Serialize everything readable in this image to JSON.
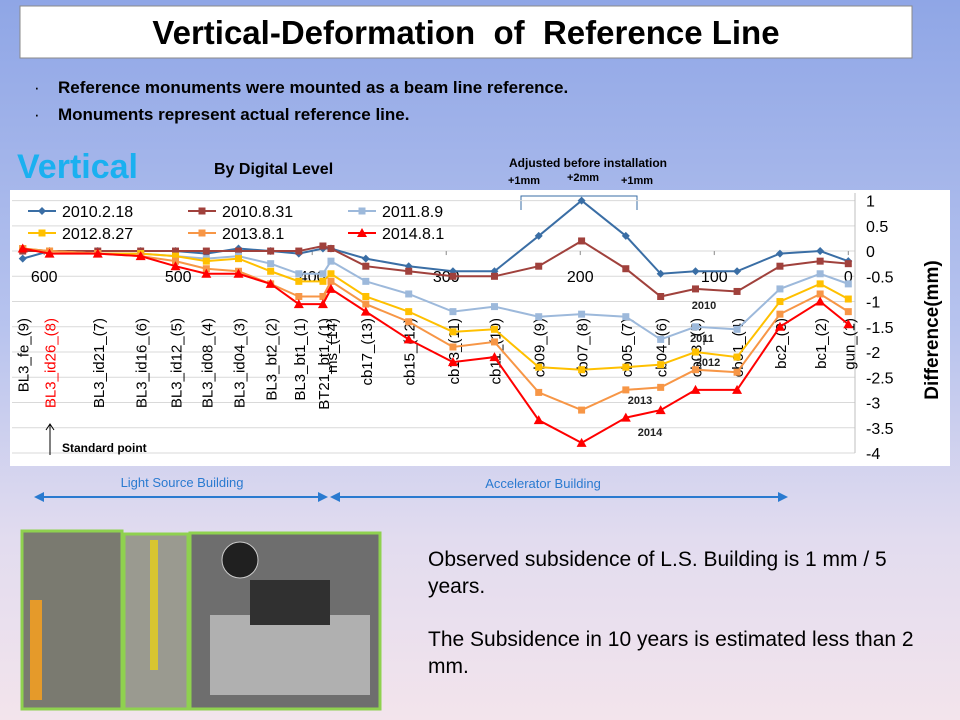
{
  "title": "Vertical-Deformation  of  Reference Line",
  "bullets": [
    "Reference monuments were mounted as a beam line reference.",
    "Monuments represent actual reference line."
  ],
  "heading": "Vertical",
  "method": "By Digital Level",
  "adjust_note": "Adjusted before installation",
  "adjust_values": [
    "+1mm",
    "+2mm",
    "+1mm"
  ],
  "standard_point": "Standard point",
  "buildings": [
    "Light Source Building",
    "Accelerator Building"
  ],
  "notes": [
    "Observed subsidence of L.S. Building is 1 mm / 5 years.",
    "The Subsidence in 10 years is estimated less than 2 mm."
  ],
  "chart_data": {
    "type": "line",
    "ylabel": "Difference(mm)",
    "categories": [
      "BL3_fe_(9)",
      "BL3_id26_(8)",
      "BL3_id21_(7)",
      "BL3_id16_(6)",
      "BL3_id12_(5)",
      "BL3_id08_(4)",
      "BL3_id04_(3)",
      "BL3_bt2_(2)",
      "BL3_bt1_(1)",
      "BT21_bt1_(1)",
      "ms_(14)",
      "cb17_(13)",
      "cb15_(12)",
      "cb13_(11)",
      "cb11_(10)",
      "cb09_(9)",
      "cb07_(8)",
      "cb05_(7)",
      "cb04_(6)",
      "cb03_(5)",
      "cb01_(4)",
      "bc2_(3)",
      "bc1_(2)",
      "gun_(1)"
    ],
    "x": [
      616,
      596,
      560,
      528,
      502,
      479,
      455,
      431,
      410,
      392,
      386,
      360,
      328,
      295,
      264,
      231,
      199,
      166,
      140,
      114,
      83,
      51,
      21,
      0
    ],
    "xlim": [
      624,
      -5
    ],
    "xticks": [
      600,
      500,
      400,
      300,
      200,
      100,
      0
    ],
    "ylim": [
      -4,
      1.15
    ],
    "yticks": [
      1,
      0.5,
      0,
      -0.5,
      -1,
      -1.5,
      -2,
      -2.5,
      -3,
      -3.5,
      -4
    ],
    "grid": true,
    "series": [
      {
        "name": "2010.2.18",
        "color": "#3a6ea5",
        "marker": "diamond",
        "values": [
          -0.15,
          0.0,
          0.0,
          0.0,
          0.0,
          -0.05,
          0.05,
          0.0,
          -0.05,
          0.05,
          0.05,
          -0.15,
          -0.3,
          -0.4,
          -0.4,
          0.3,
          1.0,
          0.3,
          -0.45,
          -0.4,
          -0.4,
          -0.05,
          0.0,
          -0.2
        ]
      },
      {
        "name": "2010.8.31",
        "color": "#a0413c",
        "marker": "square",
        "values": [
          0.0,
          0.0,
          0.0,
          0.0,
          0.0,
          0.0,
          0.0,
          0.0,
          0.0,
          0.1,
          0.05,
          -0.3,
          -0.4,
          -0.5,
          -0.5,
          -0.3,
          0.2,
          -0.35,
          -0.9,
          -0.75,
          -0.8,
          -0.3,
          -0.2,
          -0.25
        ]
      },
      {
        "name": "2011.8.9",
        "color": "#9db9db",
        "marker": "square",
        "values": [
          0.05,
          0.0,
          -0.05,
          -0.05,
          -0.1,
          -0.15,
          -0.1,
          -0.25,
          -0.45,
          -0.45,
          -0.2,
          -0.6,
          -0.85,
          -1.2,
          -1.1,
          -1.3,
          -1.25,
          -1.3,
          -1.75,
          -1.5,
          -1.55,
          -0.75,
          -0.45,
          -0.65
        ]
      },
      {
        "name": "2012.8.27",
        "color": "#ffc000",
        "marker": "square",
        "values": [
          0.05,
          0.0,
          -0.05,
          -0.05,
          -0.1,
          -0.2,
          -0.15,
          -0.4,
          -0.6,
          -0.6,
          -0.45,
          -0.9,
          -1.2,
          -1.6,
          -1.55,
          -2.3,
          -2.35,
          -2.3,
          -2.25,
          -2.0,
          -2.1,
          -1.0,
          -0.65,
          -0.95
        ]
      },
      {
        "name": "2013.8.1",
        "color": "#f79646",
        "marker": "square",
        "values": [
          0.05,
          0.0,
          -0.05,
          -0.1,
          -0.2,
          -0.35,
          -0.4,
          -0.65,
          -0.9,
          -0.9,
          -0.6,
          -1.05,
          -1.4,
          -1.9,
          -1.8,
          -2.8,
          -3.15,
          -2.75,
          -2.7,
          -2.35,
          -2.4,
          -1.25,
          -0.85,
          -1.2
        ]
      },
      {
        "name": "2014.8.1",
        "color": "#ff0000",
        "marker": "triangle",
        "values": [
          0.05,
          -0.05,
          -0.05,
          -0.1,
          -0.3,
          -0.45,
          -0.45,
          -0.65,
          -1.05,
          -1.05,
          -0.75,
          -1.2,
          -1.75,
          -2.2,
          -2.1,
          -3.35,
          -3.8,
          -3.3,
          -3.15,
          -2.75,
          -2.75,
          -1.5,
          -1.0,
          -1.45
        ]
      }
    ],
    "annotations": [
      "2010",
      "2011",
      "2012",
      "2013",
      "2014"
    ]
  }
}
